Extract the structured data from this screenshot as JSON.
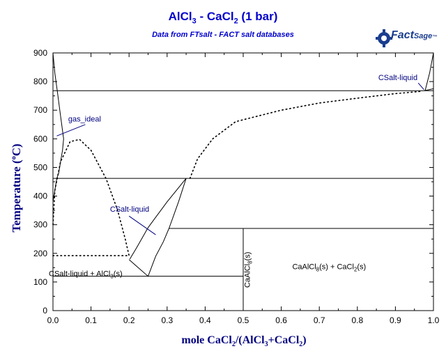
{
  "header": {
    "title_main": "AlCl",
    "title_sub1": "3",
    "title_mid": " - CaCl",
    "title_sub2": "2",
    "title_tail": " (1 bar)",
    "subtitle": "Data from FTsalt - FACT salt databases",
    "logo_fact": "Fact",
    "logo_sage": "Sage",
    "logo_tm": "™"
  },
  "axes": {
    "ylabel_main": "Temperature (",
    "ylabel_deg": "o",
    "ylabel_unit": "C)",
    "xlabel_a": "mole CaCl",
    "xlabel_sub_a": "2",
    "xlabel_b": "/(AlCl",
    "xlabel_sub_b": "3",
    "xlabel_c": "+CaCl",
    "xlabel_sub_c": "2",
    "xlabel_d": ")"
  },
  "chart_data": {
    "type": "phase-diagram",
    "x_range": [
      0.0,
      1.0
    ],
    "y_range": [
      0,
      900
    ],
    "x_ticks": [
      "0.0",
      "0.1",
      "0.2",
      "0.3",
      "0.4",
      "0.5",
      "0.6",
      "0.7",
      "0.8",
      "0.9",
      "1.0"
    ],
    "y_ticks": [
      "0",
      "100",
      "200",
      "300",
      "400",
      "500",
      "600",
      "700",
      "800",
      "900"
    ],
    "isotherms": [
      {
        "y": 768,
        "x1": 0.0,
        "x2": 1.0
      },
      {
        "y": 462,
        "x1": 0.0,
        "x2": 1.0
      },
      {
        "y": 287,
        "x1": 0.305,
        "x2": 1.0
      },
      {
        "y": 120,
        "x1": 0.0,
        "x2": 0.5
      }
    ],
    "vertical_lines": [
      {
        "x": 0.5,
        "y1": 0,
        "y2": 287
      }
    ],
    "dotted_curves": [
      {
        "name": "miscibility-gap",
        "points": [
          [
            0.0,
            192
          ],
          [
            0.2,
            192
          ],
          [
            0.19,
            250
          ],
          [
            0.17,
            350
          ],
          [
            0.14,
            460
          ],
          [
            0.1,
            560
          ],
          [
            0.07,
            598
          ],
          [
            0.045,
            590
          ],
          [
            0.02,
            520
          ],
          [
            0.005,
            420
          ],
          [
            0.0,
            300
          ]
        ]
      },
      {
        "name": "liquidus-CaCl2",
        "points": [
          [
            0.36,
            462
          ],
          [
            0.38,
            530
          ],
          [
            0.42,
            600
          ],
          [
            0.48,
            660
          ],
          [
            0.6,
            700
          ],
          [
            0.7,
            725
          ],
          [
            0.8,
            742
          ],
          [
            0.9,
            758
          ],
          [
            0.97,
            766
          ]
        ]
      }
    ],
    "solid_curves": [
      {
        "name": "gas-boundary",
        "points": [
          [
            0.0,
            900
          ],
          [
            0.005,
            830
          ],
          [
            0.012,
            760
          ],
          [
            0.018,
            700
          ],
          [
            0.024,
            640
          ],
          [
            0.028,
            600
          ],
          [
            0.025,
            560
          ],
          [
            0.02,
            520
          ],
          [
            0.015,
            480
          ],
          [
            0.01,
            462
          ],
          [
            0.005,
            420
          ],
          [
            0.0,
            380
          ]
        ]
      },
      {
        "name": "csalt-left-1",
        "points": [
          [
            0.202,
            180
          ],
          [
            0.22,
            220
          ],
          [
            0.25,
            290
          ],
          [
            0.3,
            380
          ],
          [
            0.35,
            462
          ]
        ]
      },
      {
        "name": "csalt-left-2",
        "points": [
          [
            0.2,
            178
          ],
          [
            0.25,
            120
          ],
          [
            0.27,
            190
          ],
          [
            0.29,
            240
          ],
          [
            0.305,
            287
          ],
          [
            0.33,
            380
          ],
          [
            0.35,
            462
          ]
        ]
      },
      {
        "name": "csalt-right",
        "points": [
          [
            0.978,
            768
          ],
          [
            0.99,
            830
          ],
          [
            1.0,
            900
          ]
        ]
      },
      {
        "name": "csalt-right-2",
        "points": [
          [
            0.975,
            768
          ],
          [
            0.99,
            772
          ],
          [
            1.0,
            775
          ]
        ]
      }
    ],
    "annotations": [
      {
        "text": "gas_ideal",
        "x": 0.04,
        "y": 660
      },
      {
        "text": "CSalt-liquid",
        "x": 0.15,
        "y": 345
      },
      {
        "text": "CSalt-liquid",
        "x": 0.855,
        "y": 805
      }
    ],
    "pointer_lines": [
      {
        "x1": 0.01,
        "y1": 610,
        "x2": 0.085,
        "y2": 650
      },
      {
        "x1": 0.2,
        "y1": 330,
        "x2": 0.27,
        "y2": 265
      },
      {
        "x1": 0.96,
        "y1": 795,
        "x2": 0.975,
        "y2": 772
      }
    ],
    "region_labels": [
      {
        "text_a": "CSalt-liquid + AlCl",
        "sub": "3",
        "text_b": "(s)",
        "x": 0.0,
        "y": 130
      },
      {
        "text_a": "CaAlCl",
        "sub": "8",
        "text_b": "(s) + CaCl",
        "sub2": "2",
        "text_c": "(s)",
        "x": 0.64,
        "y": 155
      }
    ],
    "vertical_label": {
      "text_a": "CaAlCl",
      "sub": "8",
      "text_b": "(s)",
      "x": 0.51,
      "y": 80
    }
  }
}
